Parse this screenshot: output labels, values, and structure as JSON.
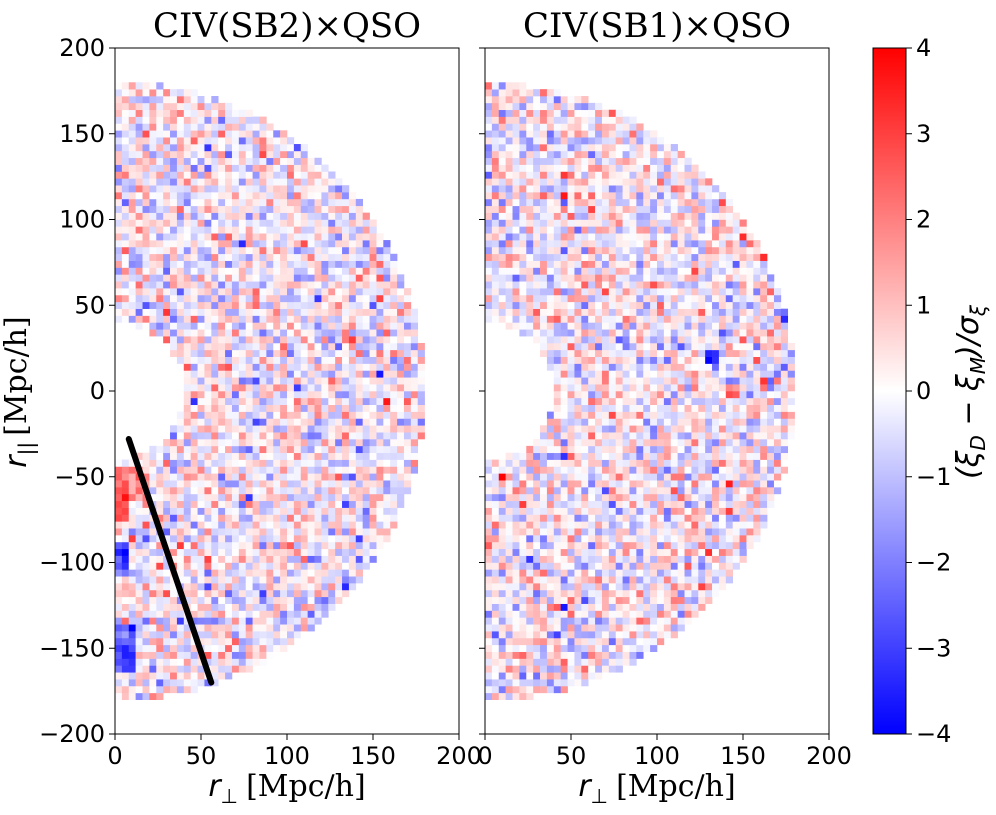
{
  "chart_data": [
    {
      "type": "heatmap",
      "title": "CIV(SB2)×QSO",
      "xlabel_symbol": "r",
      "xlabel_subscript": "⊥",
      "xlabel_units": "[Mpc/h]",
      "ylabel_symbol": "r",
      "ylabel_subscript": "||",
      "ylabel_units": "[Mpc/h]",
      "xlim": [
        0,
        200
      ],
      "ylim": [
        -200,
        200
      ],
      "xticks": [
        0,
        50,
        100,
        150,
        200
      ],
      "yticks": [
        200,
        150,
        100,
        50,
        0,
        -50,
        -100,
        -150,
        -200
      ],
      "ytick_labels": [
        "200",
        "150",
        "100",
        "50",
        "0",
        "−50",
        "−100",
        "−150",
        "−200"
      ],
      "bin_size": 4,
      "r_max": 180,
      "r_min": 40,
      "rpar_min": -180,
      "rpar_max": 180,
      "overlay_line": {
        "x": [
          8,
          56
        ],
        "y": [
          -28,
          -170
        ]
      },
      "hotspots": [
        {
          "rp": [
            0,
            8
          ],
          "rt": [
            -75,
            -45
          ],
          "value": 2.6
        },
        {
          "rp": [
            8,
            20
          ],
          "rt": [
            -65,
            -45
          ],
          "value": 1.6
        },
        {
          "rp": [
            0,
            8
          ],
          "rt": [
            -105,
            -90
          ],
          "value": -3.4
        },
        {
          "rp": [
            0,
            12
          ],
          "rt": [
            -165,
            -135
          ],
          "value": -2.8
        }
      ]
    },
    {
      "type": "heatmap",
      "title": "CIV(SB1)×QSO",
      "xlabel_symbol": "r",
      "xlabel_subscript": "⊥",
      "xlabel_units": "[Mpc/h]",
      "xlim": [
        0,
        200
      ],
      "ylim": [
        -200,
        200
      ],
      "xticks": [
        0,
        50,
        100,
        150,
        200
      ],
      "yticks": [
        200,
        150,
        100,
        50,
        0,
        -50,
        -100,
        -150,
        -200
      ],
      "bin_size": 4,
      "r_max": 180,
      "r_min": 40,
      "rpar_min": -180,
      "rpar_max": 180,
      "hotspots": [
        {
          "rp": [
            128,
            136
          ],
          "rt": [
            16,
            24
          ],
          "value": -3.4
        },
        {
          "rp": [
            140,
            144
          ],
          "rt": [
            -4,
            0
          ],
          "value": 2.5
        },
        {
          "rp": [
            60,
            64
          ],
          "rt": [
            104,
            108
          ],
          "value": 3.2
        }
      ]
    }
  ],
  "colorbar": {
    "label_text": "(ξ",
    "label_d": "D",
    "label_mid": " − ξ",
    "label_m": "M",
    "label_end": ")/σ",
    "label_sigma_sub": "ξ",
    "range": [
      -4,
      4
    ],
    "ticks": [
      4,
      3,
      2,
      1,
      0,
      -1,
      -2,
      -3,
      -4
    ],
    "tick_labels": [
      "4",
      "3",
      "2",
      "1",
      "0",
      "−1",
      "−2",
      "−3",
      "−4"
    ],
    "color_low": "#0000ff",
    "color_mid": "#ffffff",
    "color_high": "#ff0000"
  },
  "style": {
    "frame_color": "#000000",
    "overlay_line_color": "#000000"
  }
}
